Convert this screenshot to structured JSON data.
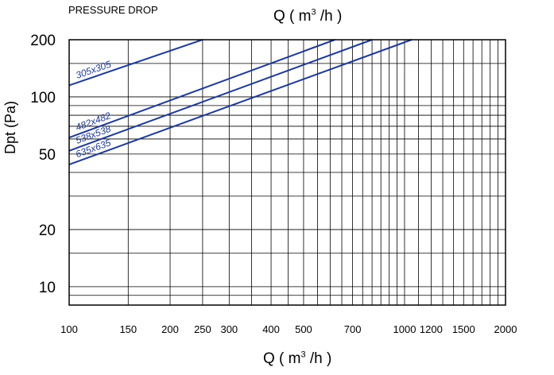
{
  "caption": "PRESSURE DROP",
  "top_axis": {
    "label_pre": "Q ( m",
    "label_sup": "3",
    "label_post": " /h )"
  },
  "bottom_axis": {
    "label_pre": "Q ( m",
    "label_sup": "3",
    "label_post": " /h )"
  },
  "y_axis_label": "Dpt (Pa)",
  "chart_data": {
    "type": "line",
    "title": "PRESSURE DROP",
    "xlabel": "Q ( m3 /h )",
    "ylabel": "Dpt (Pa)",
    "xscale": "log",
    "yscale": "log",
    "xlim": [
      100,
      2000
    ],
    "ylim": [
      8,
      200
    ],
    "grid": true,
    "x_ticks": [
      100,
      150,
      200,
      250,
      300,
      400,
      500,
      700,
      1000,
      1200,
      1500,
      2000
    ],
    "x_tick_labels": [
      "100",
      "150",
      "200",
      "250",
      "300",
      "400",
      "500",
      "700",
      "1000",
      "1200",
      "1500",
      "2000"
    ],
    "y_ticks": [
      10,
      20,
      50,
      100,
      200
    ],
    "y_tick_labels": [
      "10",
      "20",
      "50",
      "100",
      "200"
    ],
    "series": [
      {
        "name": "305x305",
        "color": "#1f3a93",
        "x": [
          100,
          250
        ],
        "y": [
          115,
          200
        ]
      },
      {
        "name": "482x482",
        "color": "#1f3a93",
        "x": [
          100,
          620
        ],
        "y": [
          61,
          200
        ]
      },
      {
        "name": "538x538",
        "color": "#1f3a93",
        "x": [
          100,
          800
        ],
        "y": [
          52,
          200
        ]
      },
      {
        "name": "635x635",
        "color": "#1f3a93",
        "x": [
          100,
          1050
        ],
        "y": [
          44,
          200
        ]
      }
    ]
  }
}
